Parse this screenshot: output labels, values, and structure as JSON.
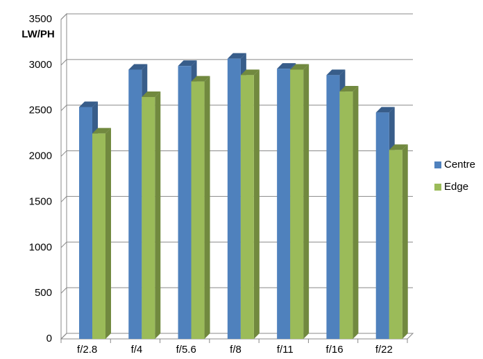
{
  "chart_data": {
    "type": "bar3d",
    "y_axis_label": "LW/PH",
    "categories": [
      "f/2.8",
      "f/4",
      "f/5.6",
      "f/8",
      "f/11",
      "f/16",
      "f/22"
    ],
    "series": [
      {
        "name": "Centre",
        "color": "#4f81bd",
        "side_color": "#385d8a",
        "values": [
          2540,
          2950,
          2990,
          3070,
          2960,
          2890,
          2480
        ]
      },
      {
        "name": "Edge",
        "color": "#9bbb59",
        "side_color": "#71893f",
        "values": [
          2250,
          2650,
          2820,
          2890,
          2950,
          2710,
          2070
        ]
      }
    ],
    "ylim": [
      0,
      3500
    ],
    "yticks": [
      0,
      500,
      1000,
      1500,
      2000,
      2500,
      3000,
      3500
    ],
    "grid": true,
    "legend": "right"
  }
}
